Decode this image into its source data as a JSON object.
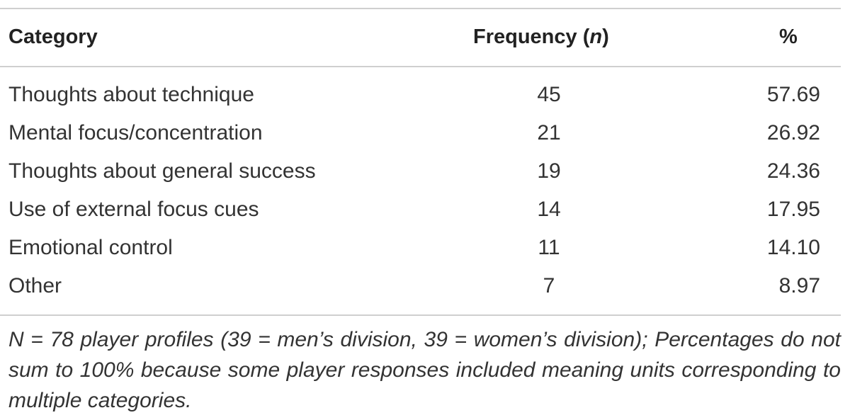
{
  "table": {
    "headers": {
      "category": "Category",
      "frequency_prefix": "Frequency (",
      "frequency_italic": "n",
      "frequency_suffix": ")",
      "percent": "%"
    },
    "rows": [
      {
        "category": "Thoughts about technique",
        "frequency": "45",
        "percent": "57.69"
      },
      {
        "category": "Mental focus/concentration",
        "frequency": "21",
        "percent": "26.92"
      },
      {
        "category": "Thoughts about general success",
        "frequency": "19",
        "percent": "24.36"
      },
      {
        "category": "Use of external focus cues",
        "frequency": "14",
        "percent": "17.95"
      },
      {
        "category": "Emotional control",
        "frequency": "11",
        "percent": "14.10"
      },
      {
        "category": "Other",
        "frequency": "7",
        "percent": "8.97"
      }
    ],
    "note": "N = 78 player profiles (39 = men’s division, 39 = women’s division); Percentages do not sum to 100% because some player responses included meaning units corresponding to multiple categories."
  }
}
